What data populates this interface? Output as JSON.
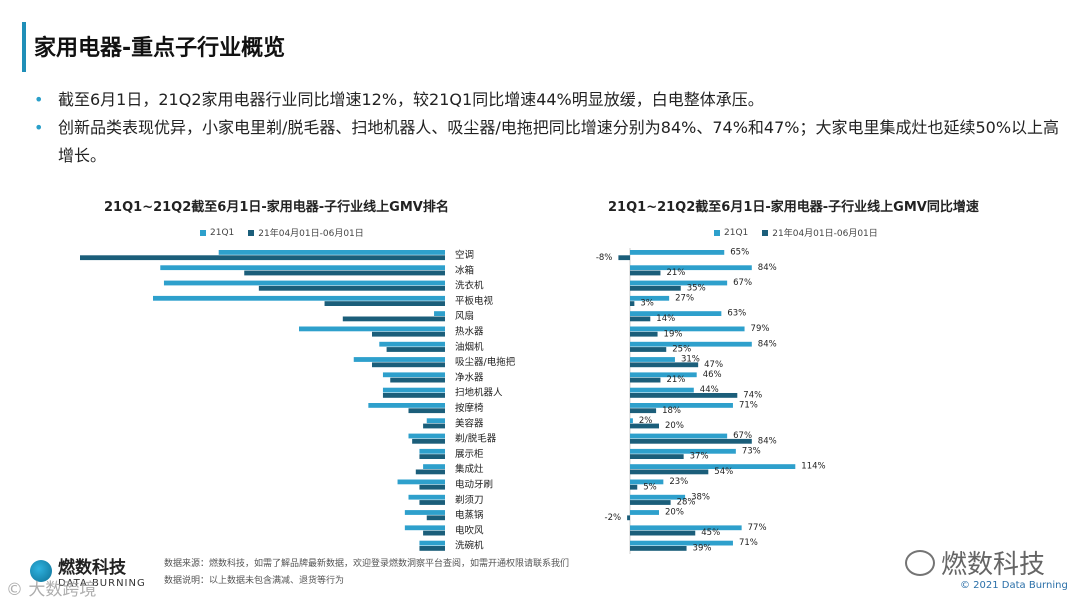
{
  "title": "家用电器-重点子行业概览",
  "bullets": [
    "截至6月1日，21Q2家用电器行业同比增速12%，较21Q1同比增速44%明显放缓，白电整体承压。",
    "创新品类表现优异，小家电里剃/脱毛器、扫地机器人、吸尘器/电拖把同比增速分别为84%、74%和47%；大家电里集成灶也延续50%以上高增长。"
  ],
  "colors": {
    "q1": "#2ea0cc",
    "q2": "#1b5e7a",
    "accent": "#1f8fb8"
  },
  "chart_data": [
    {
      "type": "bar",
      "title": "21Q1~21Q2截至6月1日-家用电器-子行业线上GMV排名",
      "legend": [
        "21Q1",
        "21年04月01日-06月01日"
      ],
      "categories": [
        "空调",
        "冰箱",
        "洗衣机",
        "平板电视",
        "风扇",
        "热水器",
        "油烟机",
        "吸尘器/电拖把",
        "净水器",
        "扫地机器人",
        "按摩椅",
        "美容器",
        "剃/脱毛器",
        "展示柜",
        "集成灶",
        "电动牙刷",
        "剃须刀",
        "电蒸锅",
        "电吹风",
        "洗碗机"
      ],
      "series": [
        {
          "name": "21Q1",
          "values": [
            62,
            78,
            77,
            80,
            3,
            40,
            18,
            25,
            17,
            17,
            21,
            5,
            10,
            7,
            6,
            13,
            10,
            11,
            11,
            7
          ]
        },
        {
          "name": "21年04月01日-06月01日",
          "values": [
            100,
            55,
            51,
            33,
            28,
            20,
            16,
            20,
            15,
            17,
            10,
            6,
            9,
            7,
            8,
            7,
            7,
            5,
            6,
            7
          ]
        }
      ]
    },
    {
      "type": "bar",
      "title": "21Q1~21Q2截至6月1日-家用电器-子行业线上GMV同比增速",
      "legend": [
        "21Q1",
        "21年04月01日-06月01日"
      ],
      "categories": [
        "空调",
        "冰箱",
        "洗衣机",
        "平板电视",
        "风扇",
        "热水器",
        "油烟机",
        "吸尘器/电拖把",
        "净水器",
        "扫地机器人",
        "按摩椅",
        "美容器",
        "剃/脱毛器",
        "展示柜",
        "集成灶",
        "电动牙刷",
        "剃须刀",
        "电蒸锅",
        "电吹风",
        "洗碗机"
      ],
      "series": [
        {
          "name": "21Q1",
          "values": [
            65,
            84,
            67,
            27,
            63,
            79,
            84,
            31,
            46,
            44,
            71,
            2,
            67,
            73,
            114,
            23,
            38,
            20,
            77,
            71
          ]
        },
        {
          "name": "21年04月01日-06月01日",
          "values": [
            -8,
            21,
            35,
            3,
            14,
            19,
            25,
            47,
            21,
            74,
            18,
            20,
            84,
            37,
            54,
            5,
            28,
            -2,
            45,
            39
          ]
        }
      ],
      "value_labels": [
        [
          "65%",
          "84%",
          "67%",
          "27%",
          "63%",
          "79%",
          "84%",
          "31%",
          "46%",
          "44%",
          "71%",
          "2%",
          "67%",
          "73%",
          "114%",
          "23%",
          "38%",
          "20%",
          "77%",
          "71%"
        ],
        [
          "-8%",
          "21%",
          "35%",
          "3%",
          "14%",
          "19%",
          "25%",
          "47%",
          "21%",
          "74%",
          "18%",
          "20%",
          "84%",
          "37%",
          "54%",
          "5%",
          "28%",
          "-2%",
          "45%",
          "39%"
        ]
      ]
    }
  ],
  "footer": {
    "logo_cn": "燃数科技",
    "logo_en": "DATA BURNING",
    "source": "数据来源：燃数科技，如需了解品牌最新数据，欢迎登录燃数洞察平台查阅，如需开通权限请联系我们",
    "note": "数据说明：以上数据未包含满减、退货等行为",
    "watermark_left": "© 大数跨境",
    "watermark_right": "燃数科技",
    "copyright": "© 2021 Data Burning"
  }
}
